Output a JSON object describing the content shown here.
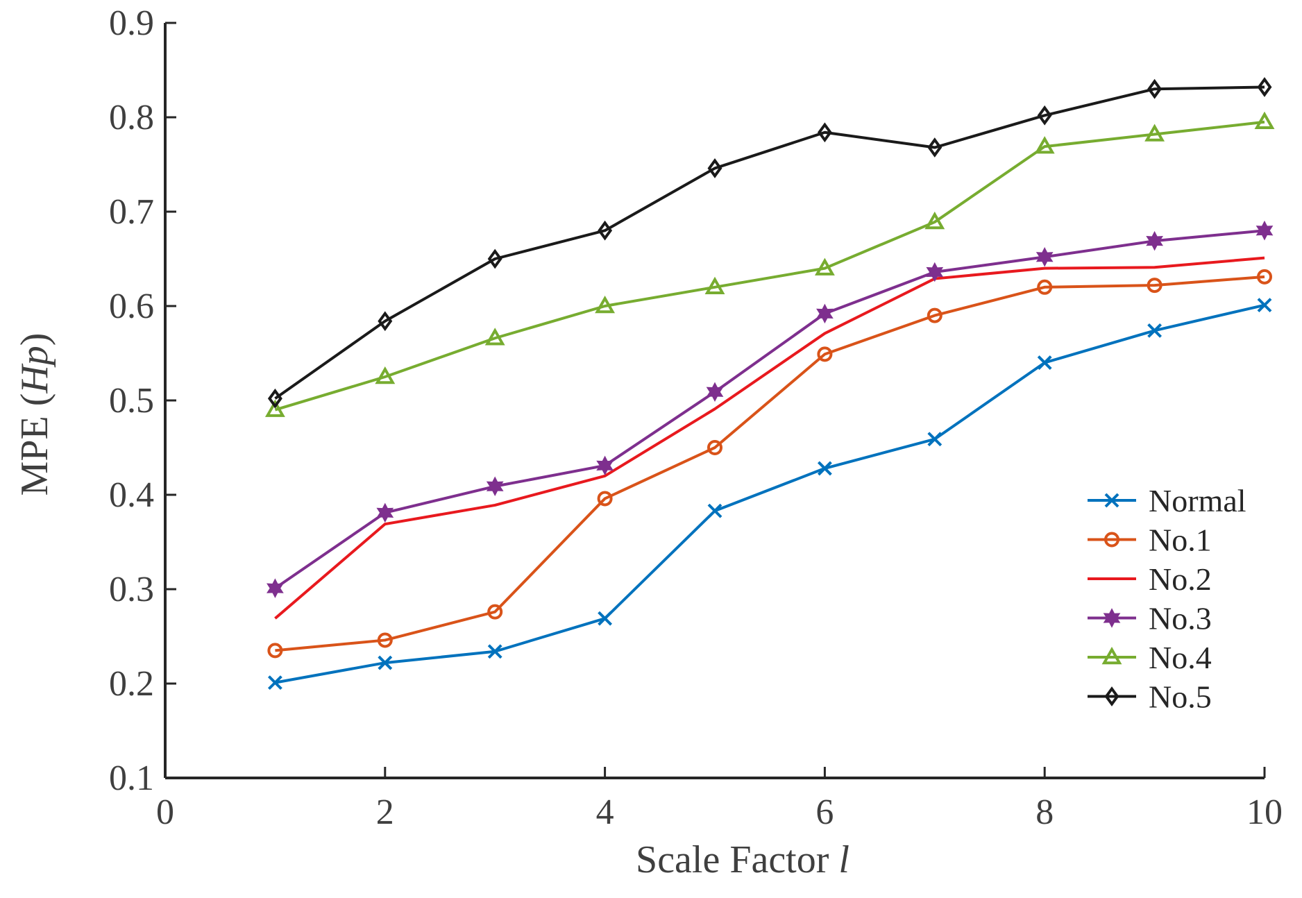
{
  "chart_data": {
    "type": "line",
    "title": "",
    "xlabel": "Scale Factor",
    "xlabel_italic": "l",
    "ylabel": "MPE (",
    "ylabel_italic": "Hp",
    "ylabel_close": ")",
    "xlim": [
      0,
      10
    ],
    "ylim": [
      0.1,
      0.9
    ],
    "xticks": [
      0,
      2,
      4,
      6,
      8,
      10
    ],
    "xtick_labels": [
      "0",
      "2",
      "4",
      "6",
      "8",
      "10"
    ],
    "yticks": [
      0.1,
      0.2,
      0.3,
      0.4,
      0.5,
      0.6,
      0.7,
      0.8,
      0.9
    ],
    "ytick_labels": [
      "0.1",
      "0.2",
      "0.3",
      "0.4",
      "0.5",
      "0.6",
      "0.7",
      "0.8",
      "0.9"
    ],
    "grid": false,
    "legend_position": "lower-right",
    "x": [
      1,
      2,
      3,
      4,
      5,
      6,
      7,
      8,
      9,
      10
    ],
    "series": [
      {
        "name": "Normal",
        "color": "#0072BD",
        "marker": "x",
        "values": [
          0.201,
          0.222,
          0.234,
          0.269,
          0.383,
          0.428,
          0.459,
          0.54,
          0.574,
          0.601
        ]
      },
      {
        "name": "No.1",
        "color": "#D95319",
        "marker": "circle",
        "values": [
          0.235,
          0.246,
          0.276,
          0.396,
          0.45,
          0.549,
          0.59,
          0.62,
          0.622,
          0.631
        ]
      },
      {
        "name": "No.2",
        "color": "#E8191E",
        "marker": "none",
        "values": [
          0.269,
          0.369,
          0.389,
          0.42,
          0.491,
          0.571,
          0.629,
          0.64,
          0.641,
          0.651
        ]
      },
      {
        "name": "No.3",
        "color": "#7E2F8E",
        "marker": "hexagram",
        "values": [
          0.301,
          0.381,
          0.409,
          0.431,
          0.509,
          0.592,
          0.636,
          0.652,
          0.669,
          0.68
        ]
      },
      {
        "name": "No.4",
        "color": "#77AC30",
        "marker": "triangle",
        "values": [
          0.49,
          0.525,
          0.566,
          0.6,
          0.62,
          0.64,
          0.689,
          0.769,
          0.782,
          0.795
        ]
      },
      {
        "name": "No.5",
        "color": "#1A1A1A",
        "marker": "diamond",
        "values": [
          0.502,
          0.584,
          0.65,
          0.68,
          0.746,
          0.784,
          0.768,
          0.802,
          0.83,
          0.832
        ]
      }
    ]
  }
}
